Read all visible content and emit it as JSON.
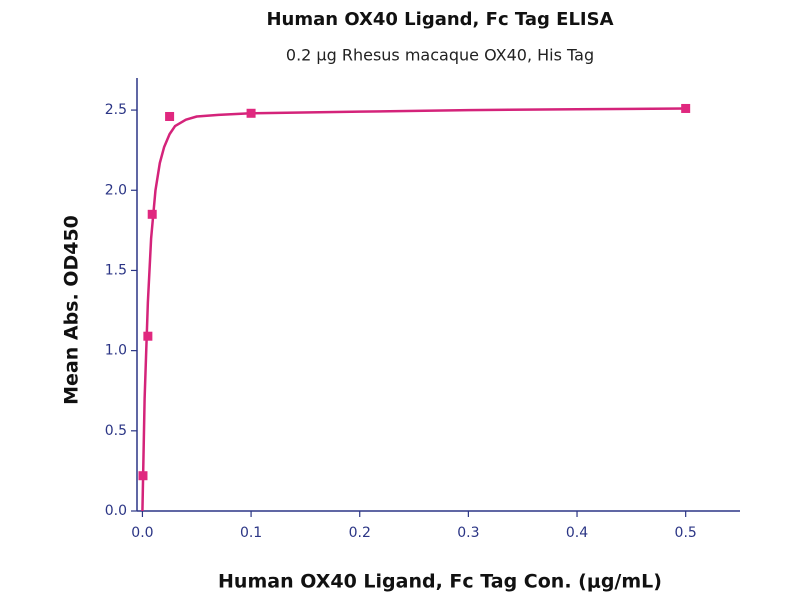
{
  "chart_data": {
    "type": "scatter",
    "title": "Human OX40 Ligand, Fc Tag ELISA",
    "subtitle": "0.2 μg Rhesus macaque OX40, His Tag",
    "x_label": "Human OX40 Ligand, Fc Tag Con. (μg/mL)",
    "y_label": "Mean Abs. OD450",
    "xlim": [
      -0.005,
      0.55
    ],
    "ylim": [
      0,
      2.7
    ],
    "xticks": [
      {
        "value": 0,
        "label": "0.0"
      },
      0.1,
      0.2,
      0.3,
      0.4,
      0.5
    ],
    "yticks": [
      {
        "value": 0,
        "label": "0.0"
      },
      0.5,
      {
        "value": 1,
        "label": "1.0"
      },
      1.5,
      {
        "value": 2,
        "label": "2.0"
      },
      2.5
    ],
    "grid": false,
    "series": [
      {
        "mode": "markers",
        "color": "#e0287f",
        "x": [
          0.0005,
          0.005,
          0.009,
          0.025,
          0.1,
          0.5
        ],
        "values": [
          0.22,
          1.09,
          1.85,
          2.46,
          2.48,
          2.51
        ]
      },
      {
        "mode": "line",
        "color": "#d4237a",
        "x": [
          0,
          0.002,
          0.005,
          0.008,
          0.012,
          0.016,
          0.02,
          0.025,
          0.03,
          0.04,
          0.05,
          0.07,
          0.1,
          0.2,
          0.3,
          0.4,
          0.5
        ],
        "values": [
          0,
          0.7,
          1.3,
          1.7,
          2.0,
          2.17,
          2.27,
          2.35,
          2.4,
          2.44,
          2.46,
          2.47,
          2.48,
          2.49,
          2.5,
          2.505,
          2.51
        ]
      }
    ]
  }
}
